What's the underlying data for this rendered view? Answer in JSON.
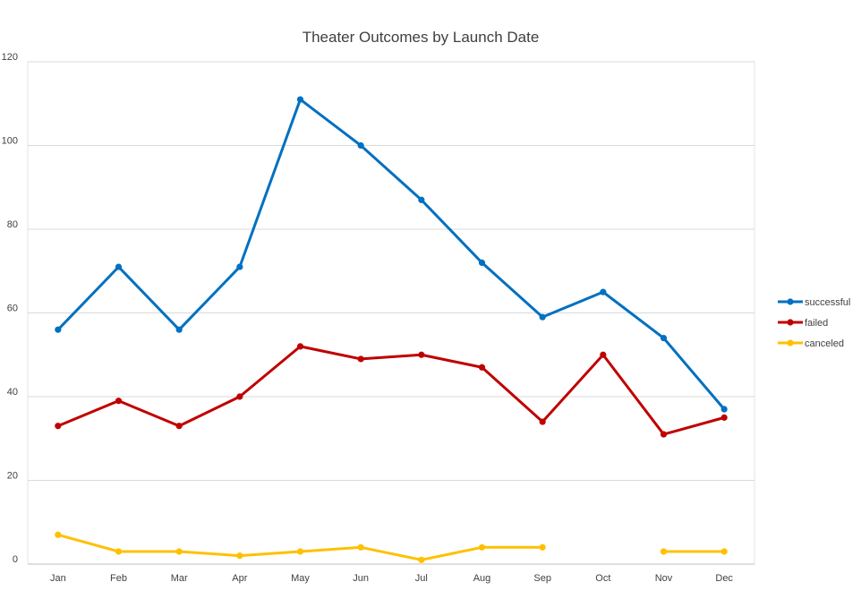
{
  "chart_data": {
    "type": "line",
    "title": "Theater Outcomes by Launch Date",
    "xlabel": "",
    "ylabel": "",
    "categories": [
      "Jan",
      "Feb",
      "Mar",
      "Apr",
      "May",
      "Jun",
      "Jul",
      "Aug",
      "Sep",
      "Oct",
      "Nov",
      "Dec"
    ],
    "ylim": [
      0,
      120
    ],
    "yticks": [
      0,
      20,
      40,
      60,
      80,
      100,
      120
    ],
    "grid": true,
    "legend_position": "right",
    "series": [
      {
        "name": "successful",
        "color": "#0070C0",
        "values": [
          56,
          71,
          56,
          71,
          111,
          100,
          87,
          72,
          59,
          65,
          54,
          37
        ]
      },
      {
        "name": "failed",
        "color": "#C00000",
        "values": [
          33,
          39,
          33,
          40,
          52,
          49,
          50,
          47,
          34,
          50,
          31,
          35
        ]
      },
      {
        "name": "canceled",
        "color": "#FFC000",
        "values": [
          7,
          3,
          3,
          2,
          3,
          4,
          1,
          4,
          4,
          null,
          3,
          3
        ]
      }
    ]
  }
}
